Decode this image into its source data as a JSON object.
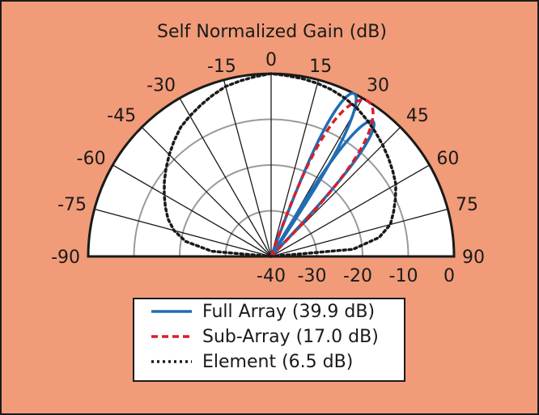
{
  "chart_data": {
    "type": "polar",
    "title": "Self Normalized Gain (dB)",
    "angle_ticks": [
      "-90",
      "-75",
      "-60",
      "-45",
      "-30",
      "-15",
      "0",
      "15",
      "30",
      "45",
      "60",
      "75",
      "90"
    ],
    "angle_tick_values": [
      -90,
      -75,
      -60,
      -45,
      -30,
      -15,
      0,
      15,
      30,
      45,
      60,
      75,
      90
    ],
    "radial_ticks": [
      "-40",
      "-30",
      "-20",
      "-10",
      "0"
    ],
    "radial_tick_values": [
      -40,
      -30,
      -20,
      -10,
      0
    ],
    "radial_range": [
      -40,
      0
    ],
    "angle_range": [
      -90,
      90
    ],
    "grid": true,
    "legend_position": "bottom-center",
    "series": [
      {
        "name": "Full Array (39.9 dB)",
        "color": "#1f6db5",
        "style": "solid",
        "lobes": [
          {
            "center_deg": 27,
            "peak_db": 0,
            "null_halfwidth_deg": 7
          },
          {
            "center_deg": 37,
            "peak_db": -3,
            "null_halfwidth_deg": 7
          }
        ]
      },
      {
        "name": "Sub-Array (17.0 dB)",
        "color": "#d81e2a",
        "style": "dashed",
        "lobes": [
          {
            "center_deg": 32,
            "peak_db": 0,
            "null_halfwidth_deg": 13
          }
        ]
      },
      {
        "name": "Element (6.5 dB)",
        "color": "#1a1a1a",
        "style": "dotted",
        "points": [
          [
            -90,
            -40
          ],
          [
            -85,
            -27
          ],
          [
            -80,
            -21
          ],
          [
            -75,
            -18
          ],
          [
            -70,
            -16
          ],
          [
            -65,
            -14.5
          ],
          [
            -60,
            -13
          ],
          [
            -55,
            -11.5
          ],
          [
            -50,
            -10
          ],
          [
            -45,
            -8.5
          ],
          [
            -40,
            -7
          ],
          [
            -35,
            -5.5
          ],
          [
            -30,
            -4.5
          ],
          [
            -25,
            -3.5
          ],
          [
            -20,
            -2.5
          ],
          [
            -15,
            -1.5
          ],
          [
            -10,
            -1
          ],
          [
            -5,
            -0.5
          ],
          [
            0,
            0
          ],
          [
            5,
            -0.3
          ],
          [
            10,
            -0.5
          ],
          [
            15,
            -0.8
          ],
          [
            20,
            -1.2
          ],
          [
            25,
            -1.8
          ],
          [
            30,
            -2.5
          ],
          [
            35,
            -3.5
          ],
          [
            40,
            -4.5
          ],
          [
            45,
            -5.5
          ],
          [
            50,
            -6.5
          ],
          [
            55,
            -7.5
          ],
          [
            60,
            -8.5
          ],
          [
            65,
            -10
          ],
          [
            70,
            -11.5
          ],
          [
            75,
            -13
          ],
          [
            80,
            -16
          ],
          [
            85,
            -22
          ],
          [
            90,
            -40
          ]
        ]
      }
    ]
  }
}
